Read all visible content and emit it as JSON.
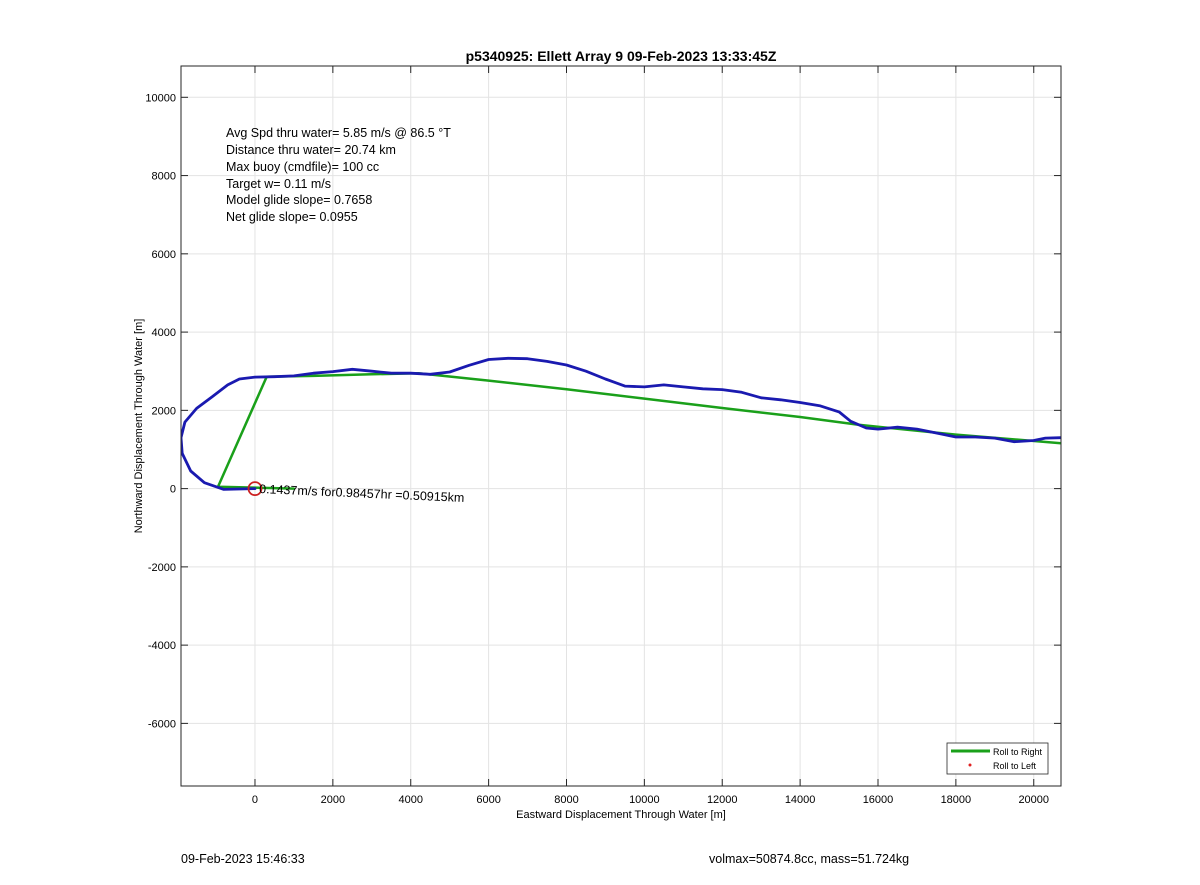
{
  "chart_data": {
    "type": "line",
    "title": "p5340925: Ellett Array 9 09-Feb-2023 13:33:45Z",
    "xlabel": "Eastward Displacement Through Water [m]",
    "ylabel": "Northward Displacement Through Water [m]",
    "xlim": [
      -1900,
      20700
    ],
    "ylim": [
      -7600,
      10800
    ],
    "xticks": [
      0,
      2000,
      4000,
      6000,
      8000,
      10000,
      12000,
      14000,
      16000,
      18000,
      20000
    ],
    "yticks": [
      -6000,
      -4000,
      -2000,
      0,
      2000,
      4000,
      6000,
      8000,
      10000
    ],
    "grid": true,
    "legend_position": "bottom-right",
    "annotations": [
      "Avg Spd thru water=  5.85 m/s @  86.5 °T",
      "Distance thru water= 20.74 km",
      "Max buoy (cmdfile)= 100 cc",
      "Target w= 0.11 m/s",
      "Model glide slope= 0.7658",
      "Net glide slope= 0.0955"
    ],
    "segment_label": "0.1437m/s for0.98457hr =0.50915km",
    "series": [
      {
        "name": "Roll to Right",
        "style": "line",
        "color": "#1aa01a",
        "x": [
          1000,
          -950,
          300,
          1500,
          3000,
          4200,
          6000,
          8000,
          10000,
          12000,
          14000,
          15500,
          16500,
          18000,
          20700
        ],
        "y": [
          0,
          50,
          2860,
          2880,
          2920,
          2950,
          2760,
          2540,
          2300,
          2060,
          1830,
          1630,
          1530,
          1380,
          1160
        ]
      },
      {
        "name": "Roll to Left",
        "style": "marker",
        "color": "#e02020",
        "x": [],
        "y": []
      },
      {
        "style": "line",
        "color": "#1a1ab0",
        "x": [
          0,
          -800,
          -1300,
          -1650,
          -1870,
          -1900,
          -1800,
          -1500,
          -1100,
          -700,
          -400,
          0,
          500,
          1000,
          1500,
          2000,
          2500,
          3000,
          3500,
          4000,
          4500,
          5000,
          5500,
          6000,
          6500,
          7000,
          7500,
          8000,
          8500,
          9000,
          9500,
          10000,
          10500,
          11000,
          11500,
          12000,
          12500,
          13000,
          13500,
          14000,
          14500,
          15000,
          15300,
          15700,
          16000,
          16500,
          17000,
          17500,
          18000,
          18500,
          19000,
          19500,
          20000,
          20300,
          20700
        ],
        "y": [
          0,
          -20,
          150,
          450,
          900,
          1300,
          1700,
          2050,
          2350,
          2650,
          2800,
          2850,
          2860,
          2880,
          2950,
          2990,
          3050,
          3000,
          2950,
          2950,
          2920,
          2980,
          3150,
          3300,
          3330,
          3320,
          3250,
          3160,
          3000,
          2800,
          2620,
          2600,
          2650,
          2600,
          2550,
          2530,
          2460,
          2320,
          2270,
          2200,
          2120,
          1960,
          1720,
          1550,
          1520,
          1570,
          1520,
          1420,
          1320,
          1320,
          1290,
          1200,
          1230,
          1290,
          1300
        ]
      }
    ],
    "start_marker": {
      "x": 0,
      "y": 0,
      "color": "#cc2020"
    }
  },
  "footer": {
    "timestamp": "09-Feb-2023 15:46:33",
    "summary": "volmax=50874.8cc, mass=51.724kg"
  }
}
